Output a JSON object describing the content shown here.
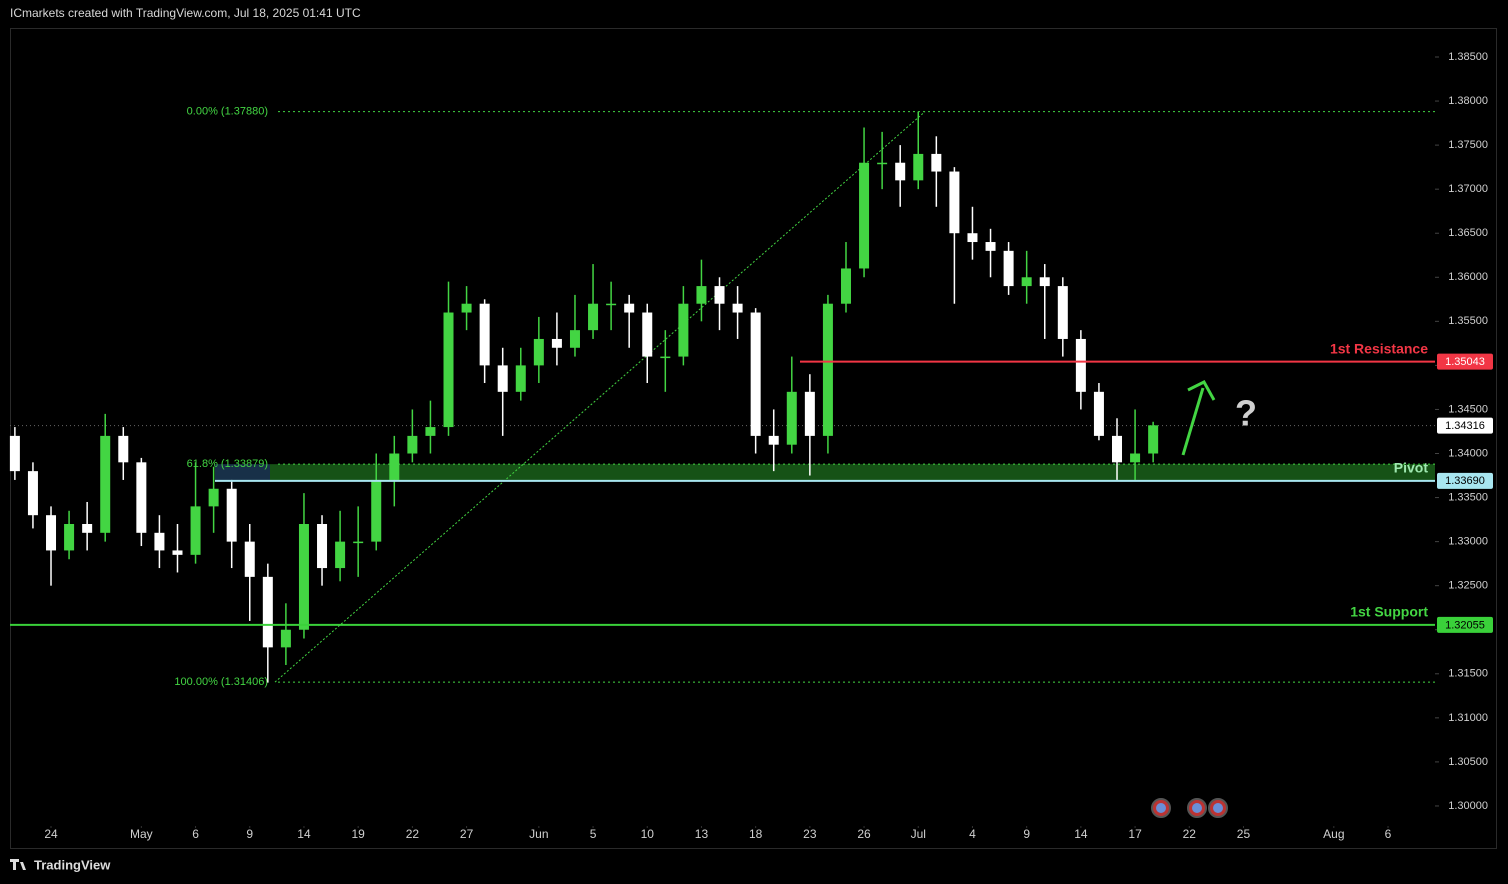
{
  "chart_data": {
    "type": "candlestick",
    "title": "ICmarkets created with TradingView.com, Jul 18, 2025 01:41 UTC",
    "watermark": "TradingView",
    "annotation": "?",
    "up_color": "#43d543",
    "down_color": "#ffffff",
    "x": [
      -2,
      -1,
      0,
      1,
      2,
      3,
      4,
      5,
      6,
      7,
      8,
      9,
      10,
      11,
      12,
      13,
      14,
      15,
      16,
      17,
      18,
      19,
      20,
      21,
      22,
      23,
      24,
      25,
      26,
      27,
      28,
      29,
      30,
      31,
      32,
      33,
      34,
      35,
      36,
      37,
      38,
      39,
      40,
      41,
      42,
      43,
      44,
      45,
      46,
      47,
      48,
      49,
      50,
      51,
      52,
      53,
      54,
      55,
      56,
      57,
      58,
      59,
      60,
      61
    ],
    "open": [
      1.342,
      1.338,
      1.333,
      1.329,
      1.332,
      1.331,
      1.342,
      1.339,
      1.331,
      1.329,
      1.3285,
      1.334,
      1.336,
      1.33,
      1.326,
      1.318,
      1.32,
      1.332,
      1.327,
      1.33,
      1.33,
      1.337,
      1.34,
      1.342,
      1.343,
      1.356,
      1.357,
      1.35,
      1.347,
      1.35,
      1.353,
      1.352,
      1.354,
      1.357,
      1.357,
      1.356,
      1.351,
      1.351,
      1.357,
      1.359,
      1.357,
      1.356,
      1.342,
      1.341,
      1.347,
      1.342,
      1.357,
      1.361,
      1.373,
      1.373,
      1.371,
      1.374,
      1.372,
      1.365,
      1.364,
      1.363,
      1.359,
      1.36,
      1.359,
      1.353,
      1.347,
      1.342,
      1.339,
      1.34
    ],
    "high": [
      1.343,
      1.339,
      1.334,
      1.3335,
      1.3345,
      1.3445,
      1.343,
      1.3395,
      1.333,
      1.332,
      1.339,
      1.3385,
      1.337,
      1.332,
      1.3275,
      1.323,
      1.3355,
      1.333,
      1.3335,
      1.334,
      1.34,
      1.342,
      1.345,
      1.346,
      1.3595,
      1.359,
      1.3575,
      1.352,
      1.352,
      1.3555,
      1.356,
      1.358,
      1.3615,
      1.3595,
      1.358,
      1.357,
      1.354,
      1.359,
      1.362,
      1.36,
      1.359,
      1.3565,
      1.345,
      1.351,
      1.349,
      1.358,
      1.364,
      1.377,
      1.3765,
      1.375,
      1.3788,
      1.376,
      1.3725,
      1.368,
      1.3655,
      1.364,
      1.363,
      1.3615,
      1.36,
      1.354,
      1.348,
      1.344,
      1.345,
      1.3436
    ],
    "low": [
      1.337,
      1.3315,
      1.325,
      1.328,
      1.329,
      1.33,
      1.337,
      1.3295,
      1.327,
      1.3265,
      1.3275,
      1.331,
      1.327,
      1.321,
      1.314,
      1.316,
      1.319,
      1.325,
      1.3255,
      1.326,
      1.329,
      1.334,
      1.339,
      1.34,
      1.342,
      1.354,
      1.348,
      1.342,
      1.346,
      1.348,
      1.35,
      1.351,
      1.353,
      1.354,
      1.352,
      1.348,
      1.347,
      1.35,
      1.355,
      1.354,
      1.353,
      1.34,
      1.338,
      1.34,
      1.3375,
      1.34,
      1.356,
      1.36,
      1.37,
      1.368,
      1.37,
      1.368,
      1.357,
      1.362,
      1.36,
      1.358,
      1.357,
      1.353,
      1.351,
      1.345,
      1.3415,
      1.337,
      1.337,
      1.339
    ],
    "close": [
      1.338,
      1.333,
      1.329,
      1.332,
      1.331,
      1.342,
      1.339,
      1.331,
      1.329,
      1.3285,
      1.334,
      1.336,
      1.33,
      1.326,
      1.318,
      1.32,
      1.332,
      1.327,
      1.33,
      1.33,
      1.337,
      1.34,
      1.342,
      1.343,
      1.356,
      1.357,
      1.35,
      1.347,
      1.35,
      1.353,
      1.352,
      1.354,
      1.357,
      1.357,
      1.356,
      1.351,
      1.351,
      1.357,
      1.359,
      1.357,
      1.356,
      1.342,
      1.341,
      1.347,
      1.342,
      1.357,
      1.361,
      1.373,
      1.373,
      1.371,
      1.374,
      1.372,
      1.365,
      1.364,
      1.363,
      1.359,
      1.36,
      1.359,
      1.353,
      1.347,
      1.342,
      1.339,
      1.34,
      1.3432
    ],
    "xlim": [
      -2.27,
      76.6
    ],
    "xticks": [
      {
        "value": 0,
        "label": "24"
      },
      {
        "value": 5,
        "label": "May"
      },
      {
        "value": 8,
        "label": "6"
      },
      {
        "value": 11,
        "label": "9"
      },
      {
        "value": 14,
        "label": "14"
      },
      {
        "value": 17,
        "label": "19"
      },
      {
        "value": 20,
        "label": "22"
      },
      {
        "value": 23,
        "label": "27"
      },
      {
        "value": 27,
        "label": "Jun"
      },
      {
        "value": 30,
        "label": "5"
      },
      {
        "value": 33,
        "label": "10"
      },
      {
        "value": 36,
        "label": "13"
      },
      {
        "value": 39,
        "label": "18"
      },
      {
        "value": 42,
        "label": "23"
      },
      {
        "value": 45,
        "label": "26"
      },
      {
        "value": 48,
        "label": "Jul"
      },
      {
        "value": 51,
        "label": "4"
      },
      {
        "value": 54,
        "label": "9"
      },
      {
        "value": 57,
        "label": "14"
      },
      {
        "value": 60,
        "label": "17"
      },
      {
        "value": 63,
        "label": "22"
      },
      {
        "value": 66,
        "label": "25"
      },
      {
        "value": 71,
        "label": "Aug"
      },
      {
        "value": 74,
        "label": "6"
      }
    ],
    "ylim": [
      1.29523,
      1.38829
    ],
    "yticks": [
      {
        "value": 1.3,
        "label": "1.30000"
      },
      {
        "value": 1.305,
        "label": "1.30500"
      },
      {
        "value": 1.31,
        "label": "1.31000"
      },
      {
        "value": 1.315,
        "label": "1.31500"
      },
      {
        "value": 1.32,
        "label": "1.32000"
      },
      {
        "value": 1.325,
        "label": "1.32500"
      },
      {
        "value": 1.33,
        "label": "1.33000"
      },
      {
        "value": 1.335,
        "label": "1.33500"
      },
      {
        "value": 1.34,
        "label": "1.34000"
      },
      {
        "value": 1.345,
        "label": "1.34500"
      },
      {
        "value": 1.35,
        "label": "1.35000"
      },
      {
        "value": 1.355,
        "label": "1.35500"
      },
      {
        "value": 1.36,
        "label": "1.36000"
      },
      {
        "value": 1.365,
        "label": "1.36500"
      },
      {
        "value": 1.37,
        "label": "1.37000"
      },
      {
        "value": 1.375,
        "label": "1.37500"
      },
      {
        "value": 1.38,
        "label": "1.38000"
      },
      {
        "value": 1.385,
        "label": "1.38500"
      }
    ],
    "fib": [
      {
        "value": 1.3788,
        "label": "0.00% (1.37880)"
      },
      {
        "value": 1.33879,
        "label": "61.8% (1.33879)"
      },
      {
        "value": 1.31406,
        "label": "100.00% (1.31406)"
      }
    ],
    "levels": [
      {
        "name": "1st Resistance",
        "value": 1.35043,
        "label": "1.35043",
        "color": "#f23645"
      },
      {
        "name": "Pivot",
        "value": 1.3369,
        "label": "1.33690",
        "color": "#a8e6f0"
      },
      {
        "name": "1st Support",
        "value": 1.32055,
        "label": "1.32055",
        "color": "#3ad13a"
      }
    ],
    "last_price": {
      "value": 1.34316,
      "label": "1.34316"
    }
  }
}
